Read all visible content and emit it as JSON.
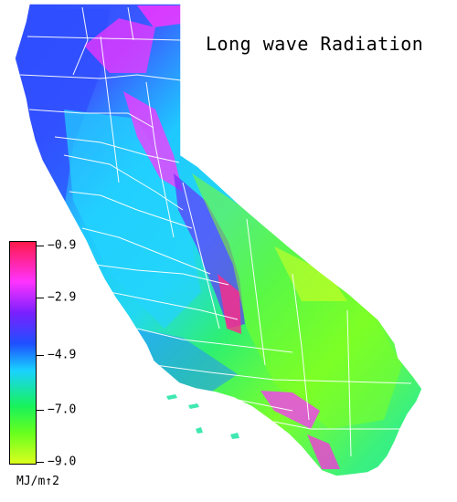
{
  "title": "Long wave Radiation",
  "legend": {
    "unit": "MJ/m↑2",
    "ticks": [
      "−0.9",
      "−2.9",
      "−4.9",
      "−7.0",
      "−9.0"
    ],
    "colors": {
      "high": "#ff1a4a",
      "magenta": "#ff33ff",
      "violet": "#7a20ff",
      "blue": "#1e50ff",
      "cyan": "#19d2ff",
      "green": "#18f25c",
      "chartreuse": "#66ff1e",
      "low": "#dcff1e"
    }
  },
  "map": {
    "region": "California",
    "border_color": "#ffffff",
    "ocean_color": "#ffffff"
  }
}
